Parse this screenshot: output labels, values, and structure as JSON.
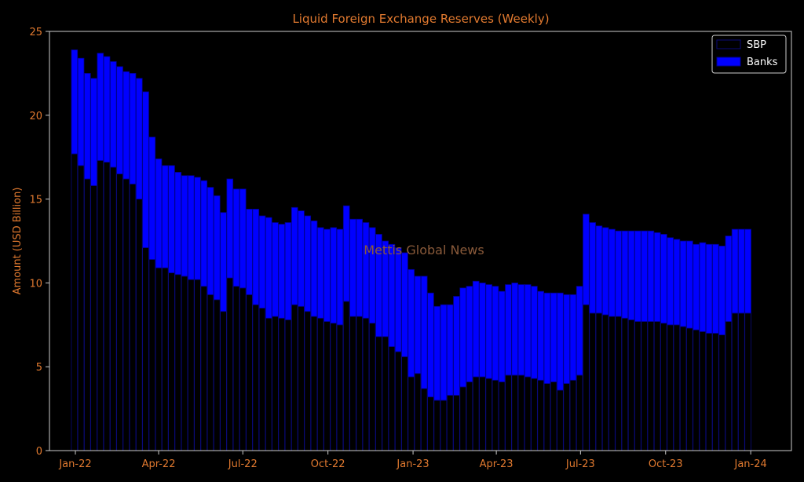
{
  "chart_data": {
    "type": "bar",
    "title": "Liquid Foreign Exchange Reserves (Weekly)",
    "xlabel": "",
    "ylabel": "Amount (USD Billion)",
    "ylim": [
      0,
      25
    ],
    "yticks": [
      0,
      5,
      10,
      15,
      20,
      25
    ],
    "x_tick_labels": [
      "Jan-22",
      "Apr-22",
      "Jul-22",
      "Oct-22",
      "Jan-23",
      "Apr-23",
      "Jul-23",
      "Oct-23",
      "Jan-24"
    ],
    "x_tick_dates": [
      "2022-01-01",
      "2022-04-01",
      "2022-07-01",
      "2022-10-01",
      "2023-01-01",
      "2023-04-01",
      "2023-07-01",
      "2023-10-01",
      "2024-01-01"
    ],
    "xlim": [
      "2021-12-04",
      "2024-02-14"
    ],
    "stacked": true,
    "grid": false,
    "legend_position": "top-right",
    "watermark": "Mettis Global News",
    "colors": {
      "background": "#000000",
      "text": "#e0792f",
      "axes": "#cccccc",
      "sbp_fill": "#000000",
      "sbp_edge": "#0a0a7a",
      "banks_fill": "#0000ff",
      "banks_edge": "#00008b"
    },
    "dates": [
      "2021-12-31",
      "2022-01-07",
      "2022-01-14",
      "2022-01-21",
      "2022-01-28",
      "2022-02-04",
      "2022-02-11",
      "2022-02-18",
      "2022-02-25",
      "2022-03-04",
      "2022-03-11",
      "2022-03-18",
      "2022-03-25",
      "2022-04-01",
      "2022-04-08",
      "2022-04-15",
      "2022-04-22",
      "2022-04-29",
      "2022-05-06",
      "2022-05-13",
      "2022-05-20",
      "2022-05-27",
      "2022-06-03",
      "2022-06-10",
      "2022-06-17",
      "2022-06-24",
      "2022-07-01",
      "2022-07-08",
      "2022-07-15",
      "2022-07-22",
      "2022-07-29",
      "2022-08-05",
      "2022-08-12",
      "2022-08-19",
      "2022-08-26",
      "2022-09-02",
      "2022-09-09",
      "2022-09-16",
      "2022-09-23",
      "2022-09-30",
      "2022-10-07",
      "2022-10-14",
      "2022-10-21",
      "2022-10-28",
      "2022-11-04",
      "2022-11-11",
      "2022-11-18",
      "2022-11-25",
      "2022-12-02",
      "2022-12-09",
      "2022-12-16",
      "2022-12-23",
      "2022-12-30",
      "2023-01-06",
      "2023-01-13",
      "2023-01-20",
      "2023-01-27",
      "2023-02-03",
      "2023-02-10",
      "2023-02-17",
      "2023-02-24",
      "2023-03-03",
      "2023-03-10",
      "2023-03-17",
      "2023-03-24",
      "2023-03-31",
      "2023-04-07",
      "2023-04-14",
      "2023-04-21",
      "2023-04-28",
      "2023-05-05",
      "2023-05-12",
      "2023-05-19",
      "2023-05-26",
      "2023-06-02",
      "2023-06-09",
      "2023-06-16",
      "2023-06-23",
      "2023-06-30",
      "2023-07-07",
      "2023-07-14",
      "2023-07-21",
      "2023-07-28",
      "2023-08-04",
      "2023-08-11",
      "2023-08-18",
      "2023-08-25",
      "2023-09-01",
      "2023-09-08",
      "2023-09-15",
      "2023-09-22",
      "2023-09-29",
      "2023-10-06",
      "2023-10-13",
      "2023-10-20",
      "2023-10-27",
      "2023-11-03",
      "2023-11-10",
      "2023-11-17",
      "2023-11-24",
      "2023-12-01",
      "2023-12-08",
      "2023-12-15",
      "2023-12-22",
      "2023-12-29"
    ],
    "series": [
      {
        "name": "SBP",
        "values": [
          17.7,
          17.0,
          16.2,
          15.8,
          17.3,
          17.2,
          16.9,
          16.5,
          16.2,
          15.9,
          15.0,
          12.1,
          11.4,
          10.9,
          10.9,
          10.6,
          10.5,
          10.4,
          10.2,
          10.2,
          9.8,
          9.3,
          9.0,
          8.3,
          10.3,
          9.8,
          9.7,
          9.3,
          8.7,
          8.5,
          7.9,
          8.0,
          7.9,
          7.8,
          8.7,
          8.6,
          8.3,
          8.0,
          7.9,
          7.7,
          7.6,
          7.5,
          8.9,
          8.0,
          8.0,
          7.9,
          7.6,
          6.8,
          6.8,
          6.2,
          5.9,
          5.6,
          4.4,
          4.6,
          3.7,
          3.2,
          3.0,
          3.0,
          3.3,
          3.3,
          3.8,
          4.1,
          4.4,
          4.4,
          4.3,
          4.2,
          4.1,
          4.5,
          4.5,
          4.5,
          4.4,
          4.3,
          4.2,
          4.0,
          4.1,
          3.6,
          4.0,
          4.2,
          4.5,
          8.7,
          8.2,
          8.2,
          8.1,
          8.0,
          8.0,
          7.9,
          7.8,
          7.7,
          7.7,
          7.7,
          7.7,
          7.6,
          7.5,
          7.5,
          7.4,
          7.3,
          7.2,
          7.1,
          7.0,
          7.0,
          6.9,
          7.7,
          8.2,
          8.2,
          8.2
        ]
      },
      {
        "name": "Banks",
        "values": [
          6.2,
          6.4,
          6.3,
          6.4,
          6.4,
          6.3,
          6.3,
          6.4,
          6.4,
          6.6,
          7.2,
          9.3,
          7.3,
          6.5,
          6.1,
          6.4,
          6.1,
          6.0,
          6.2,
          6.1,
          6.3,
          6.4,
          6.2,
          5.9,
          5.9,
          5.8,
          5.9,
          5.1,
          5.7,
          5.5,
          6.0,
          5.6,
          5.6,
          5.8,
          5.8,
          5.7,
          5.7,
          5.7,
          5.4,
          5.5,
          5.7,
          5.7,
          5.7,
          5.8,
          5.8,
          5.7,
          5.7,
          6.1,
          5.7,
          6.1,
          6.2,
          6.2,
          6.4,
          5.8,
          6.7,
          6.2,
          5.6,
          5.7,
          5.4,
          5.9,
          5.9,
          5.7,
          5.7,
          5.6,
          5.6,
          5.6,
          5.4,
          5.4,
          5.5,
          5.4,
          5.5,
          5.5,
          5.3,
          5.4,
          5.3,
          5.8,
          5.3,
          5.1,
          5.3,
          5.4,
          5.4,
          5.2,
          5.2,
          5.2,
          5.1,
          5.2,
          5.3,
          5.4,
          5.4,
          5.4,
          5.3,
          5.3,
          5.2,
          5.1,
          5.1,
          5.2,
          5.1,
          5.3,
          5.3,
          5.3,
          5.3,
          5.1,
          5.0,
          5.0,
          5.0
        ]
      }
    ]
  }
}
